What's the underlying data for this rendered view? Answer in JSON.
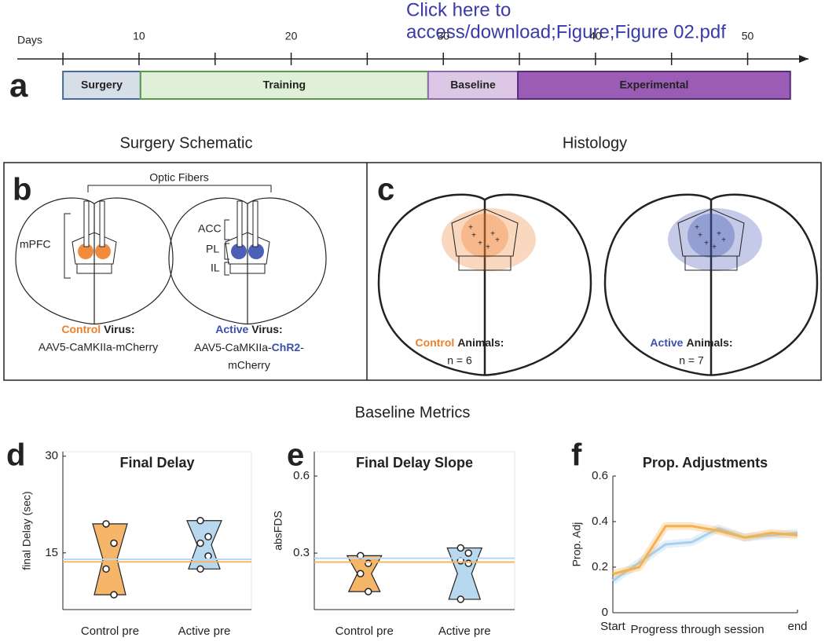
{
  "link": {
    "lines": [
      "Click here to",
      "access/download;Figure;Figure 02.pdf"
    ]
  },
  "timeline": {
    "panel": "a",
    "label": "Days",
    "xlim": [
      2,
      54
    ],
    "xticks": [
      10,
      20,
      30,
      40,
      50
    ],
    "minor_ticks": [
      5,
      15,
      25,
      35,
      45
    ],
    "phases": [
      {
        "name": "Surgery",
        "start": 5,
        "end": 10.1,
        "color": "#d6dfe8",
        "edge": "#4a6a9a"
      },
      {
        "name": "Training",
        "start": 10.1,
        "end": 29,
        "color": "#e0f0d8",
        "edge": "#5a9a4a"
      },
      {
        "name": "Baseline",
        "start": 29,
        "end": 34.9,
        "color": "#dcc8e6",
        "edge": "#8a6aa8"
      },
      {
        "name": "Experimental",
        "start": 34.9,
        "end": 52.8,
        "color": "#9b5cb6",
        "edge": "#5a2a7a"
      }
    ]
  },
  "schematic": {
    "title": "Surgery Schematic",
    "panel": "b",
    "fibers_label": "Optic Fibers",
    "regions": [
      "mPFC",
      "ACC",
      "PL",
      "IL"
    ],
    "control": {
      "group": "Control",
      "text": "Virus:",
      "virus": "AAV5-CaMKIIa-mCherry",
      "color": "#f07f2a"
    },
    "active": {
      "group": "Active",
      "text": "Virus:",
      "virus_parts": [
        "AAV5-CaMKIIa-",
        "ChR2",
        "-"
      ],
      "virus_end": "mCherry",
      "color": "#3a4fb0"
    }
  },
  "histology": {
    "title": "Histology",
    "panel": "c",
    "control": {
      "group": "Control",
      "text": "Animals:",
      "n": "n = 6",
      "color": "#f07f2a"
    },
    "active": {
      "group": "Active",
      "text": "Animals:",
      "n": "n = 7",
      "color": "#3a4fb0"
    }
  },
  "metrics_title": "Baseline Metrics",
  "chart_data": [
    {
      "type": "strip",
      "panel": "d",
      "title": "Final Delay",
      "ylabel": "final Delay (sec)",
      "categories": [
        "Control pre",
        "Active pre"
      ],
      "ylim": [
        6.2,
        30.7
      ],
      "yticks": [
        15,
        30
      ],
      "groups": [
        {
          "color": "#f5b66a",
          "points": [
            19.5,
            16.5,
            12.5,
            8.5
          ],
          "ref_line": 13.6
        },
        {
          "color": "#b8d8f0",
          "points": [
            20,
            17.5,
            16.5,
            14.5,
            12.5
          ],
          "ref_line": 14.0
        }
      ]
    },
    {
      "type": "strip",
      "panel": "e",
      "title": "Final Delay Slope",
      "ylabel": "absFDS",
      "categories": [
        "Control pre",
        "Active pre"
      ],
      "ylim": [
        0.08,
        0.695
      ],
      "yticks": [
        0.3,
        0.6
      ],
      "groups": [
        {
          "color": "#f5b66a",
          "points": [
            0.29,
            0.26,
            0.22,
            0.15
          ],
          "ref_line": 0.265
        },
        {
          "color": "#b8d8f0",
          "points": [
            0.32,
            0.3,
            0.27,
            0.26,
            0.12
          ],
          "ref_line": 0.28
        }
      ]
    },
    {
      "type": "line",
      "panel": "f",
      "title": "Prop. Adjustments",
      "ylabel": "Prop. Adj",
      "xlabel": "Progress through session",
      "categories": [
        "Start",
        null,
        null,
        null,
        null,
        null,
        null,
        "end"
      ],
      "ylim": [
        0,
        0.6
      ],
      "yticks": [
        0,
        0.2,
        0.4,
        0.6
      ],
      "series": [
        {
          "color": "#a8d0ee",
          "values": [
            0.14,
            0.22,
            0.3,
            0.31,
            0.37,
            0.33,
            0.34,
            0.35
          ]
        },
        {
          "color": "#f5b050",
          "values": [
            0.17,
            0.2,
            0.38,
            0.38,
            0.36,
            0.33,
            0.35,
            0.34
          ]
        }
      ]
    }
  ]
}
